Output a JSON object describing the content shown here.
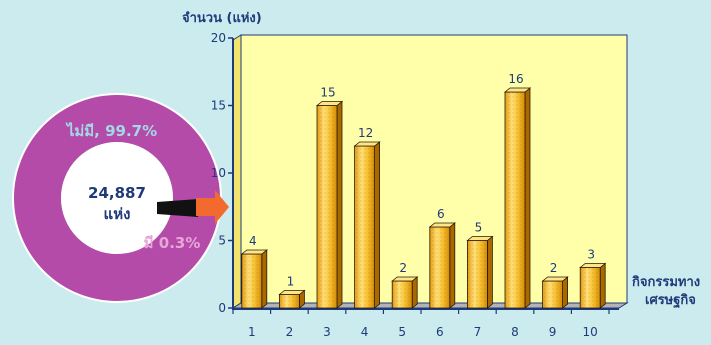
{
  "donut": {
    "center_value": "24,887",
    "center_unit": "แห่ง",
    "slices": [
      {
        "label": "ไม่มี, 99.7%",
        "percent": 99.7,
        "color": "#B54BA8"
      },
      {
        "label": "มี 0.3%",
        "percent": 0.3,
        "color": "#111111"
      }
    ]
  },
  "chart_data": {
    "type": "bar",
    "ylabel": "จำนวน (แห่ง)",
    "xlabel_line1": "กิจกรรมทาง",
    "xlabel_line2": "เศรษฐกิจ",
    "categories": [
      "1",
      "2",
      "3",
      "4",
      "5",
      "6",
      "7",
      "8",
      "9",
      "10"
    ],
    "values": [
      4,
      1,
      15,
      12,
      2,
      6,
      5,
      16,
      2,
      3
    ],
    "ylim": [
      0,
      20
    ],
    "yticks": [
      0,
      5,
      10,
      15,
      20
    ],
    "plot_color": "#FFFFAA",
    "bar_color": "#F2B21C",
    "legend": "none"
  }
}
